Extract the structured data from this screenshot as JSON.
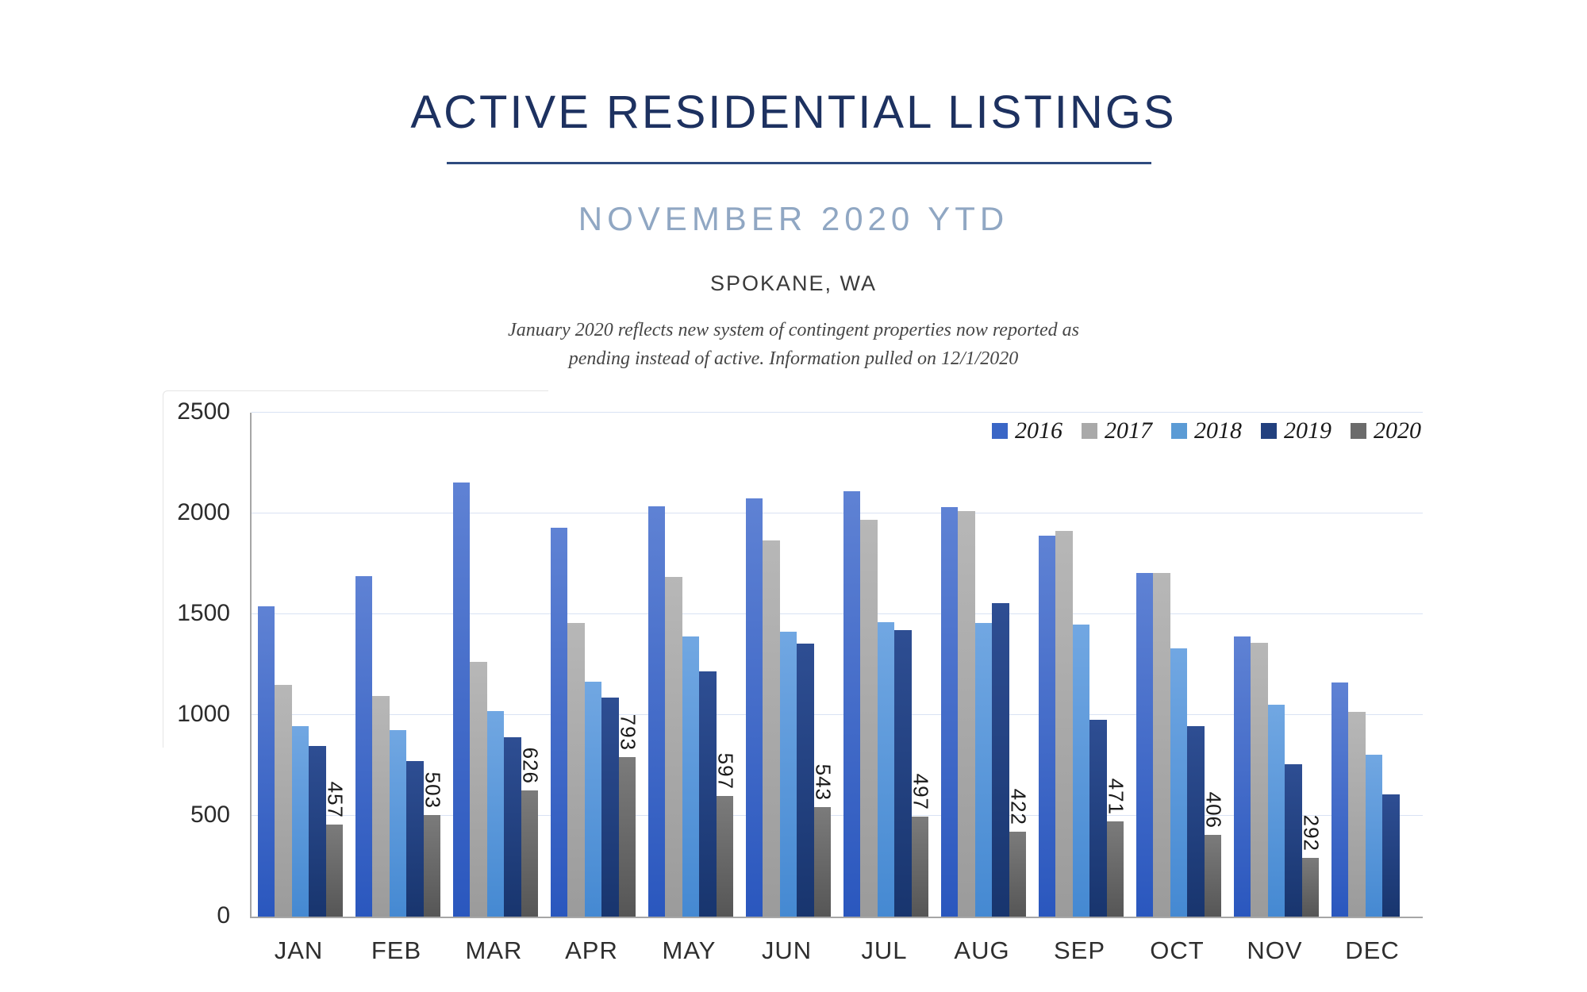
{
  "header": {
    "title": "ACTIVE RESIDENTIAL LISTINGS",
    "subtitle": "NOVEMBER 2020 YTD",
    "location": "SPOKANE, WA",
    "note_line1": "January 2020 reflects new system of contingent properties now reported as",
    "note_line2": "pending instead of active.  Information pulled on 12/1/2020"
  },
  "chart_data": {
    "type": "bar",
    "title": "Active Residential Listings by month, 2016-2020",
    "categories": [
      "JAN",
      "FEB",
      "MAR",
      "APR",
      "MAY",
      "JUN",
      "JUL",
      "AUG",
      "SEP",
      "OCT",
      "NOV",
      "DEC"
    ],
    "series": [
      {
        "name": "2016",
        "legend_color": "#3a66c6",
        "color_top": "#5f82d4",
        "color_bottom": "#2a57be",
        "values": [
          1540,
          1690,
          2155,
          1930,
          2035,
          2075,
          2110,
          2030,
          1890,
          1705,
          1390,
          1160
        ]
      },
      {
        "name": "2017",
        "legend_color": "#a9a9a9",
        "color_top": "#b7b7b7",
        "color_bottom": "#9b9b9b",
        "values": [
          1150,
          1095,
          1265,
          1455,
          1685,
          1865,
          1970,
          2010,
          1915,
          1705,
          1360,
          1015
        ]
      },
      {
        "name": "2018",
        "legend_color": "#5b9bd5",
        "color_top": "#71a7e2",
        "color_bottom": "#4589d2",
        "values": [
          945,
          925,
          1020,
          1165,
          1390,
          1415,
          1460,
          1455,
          1450,
          1330,
          1050,
          805
        ]
      },
      {
        "name": "2019",
        "legend_color": "#22407e",
        "color_top": "#2e4e93",
        "color_bottom": "#18356e",
        "values": [
          845,
          770,
          890,
          1085,
          1215,
          1355,
          1420,
          1555,
          975,
          945,
          755,
          605
        ]
      },
      {
        "name": "2020",
        "legend_color": "#6b6b6b",
        "color_top": "#7b7b7b",
        "color_bottom": "#565656",
        "values": [
          457,
          503,
          626,
          793,
          597,
          543,
          497,
          422,
          471,
          406,
          292,
          null
        ],
        "data_labels": [
          "457",
          "503",
          "626",
          "793",
          "597",
          "543",
          "497",
          "422",
          "471",
          "406",
          "292",
          null
        ]
      }
    ],
    "ylim": [
      0,
      2500
    ],
    "yticks": [
      0,
      500,
      1000,
      1500,
      2000,
      2500
    ],
    "ytick_labels": [
      "0",
      "500",
      "1000",
      "1500",
      "2000",
      "2500"
    ],
    "grid": true,
    "legend_position": "top-right",
    "data_labels_on": "2020"
  }
}
